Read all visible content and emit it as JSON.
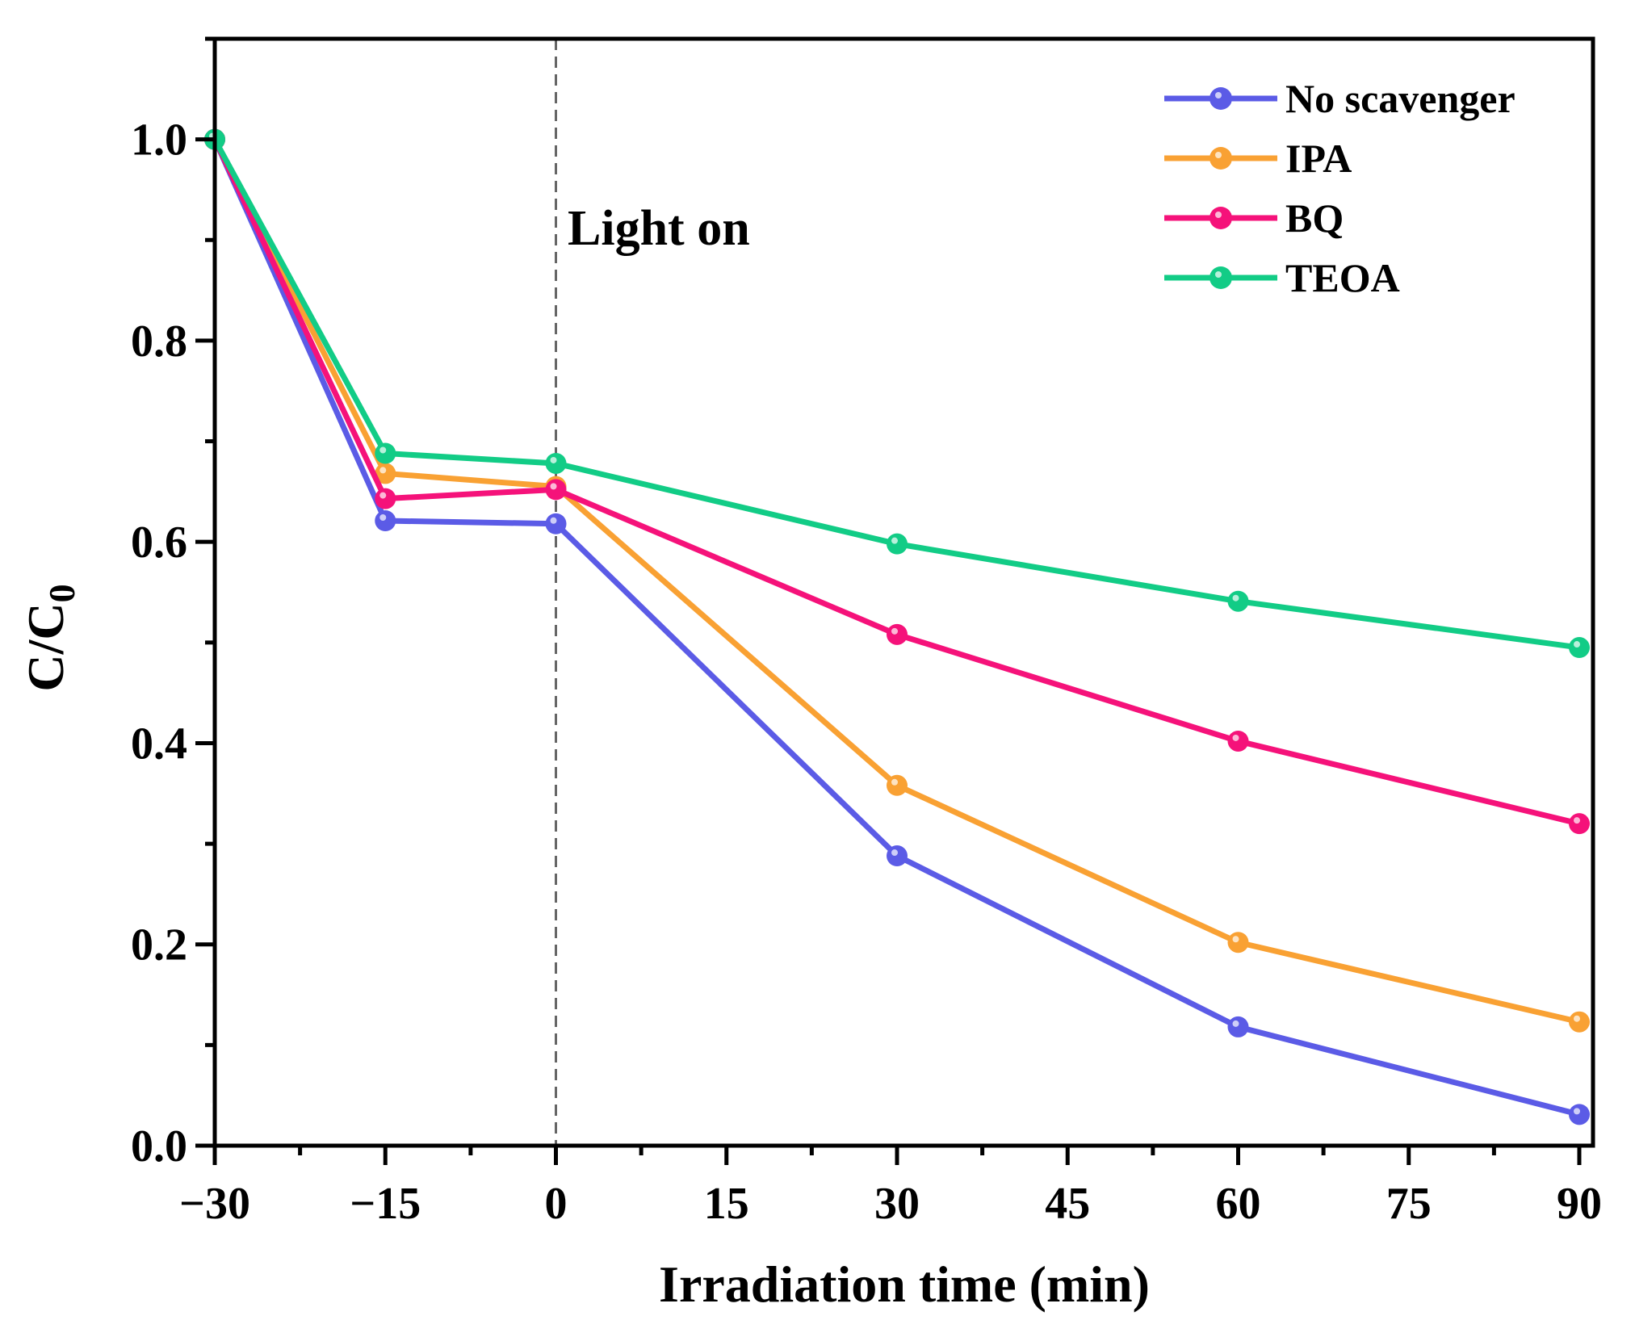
{
  "chart_data": {
    "type": "line",
    "title": "",
    "xlabel": "Irradiation time (min)",
    "ylabel_main": "C/C",
    "ylabel_sub": "0",
    "xlim": [
      -30,
      90
    ],
    "ylim": [
      0,
      1.1
    ],
    "x": [
      -30,
      -15,
      0,
      30,
      60,
      90
    ],
    "xticks": [
      -30,
      -15,
      0,
      15,
      30,
      45,
      60,
      75,
      90
    ],
    "xtick_labels": [
      "−30",
      "−15",
      "0",
      "15",
      "30",
      "45",
      "60",
      "75",
      "90"
    ],
    "yticks": [
      0,
      0.2,
      0.4,
      0.6,
      0.8,
      1.0
    ],
    "ytick_labels": [
      "0.0",
      "0.2",
      "0.4",
      "0.6",
      "0.8",
      "1.0"
    ],
    "grid": false,
    "legend_position": "top-right",
    "annotation": {
      "text": "Light on",
      "x": 0
    },
    "series": [
      {
        "name": "No scavenger",
        "color": "#5b5be6",
        "values": [
          1.0,
          0.621,
          0.618,
          0.288,
          0.118,
          0.031
        ]
      },
      {
        "name": "IPA",
        "color": "#f9a133",
        "values": [
          1.0,
          0.668,
          0.655,
          0.358,
          0.202,
          0.123
        ]
      },
      {
        "name": "BQ",
        "color": "#f5127a",
        "values": [
          1.0,
          0.643,
          0.652,
          0.508,
          0.402,
          0.32
        ]
      },
      {
        "name": "TEOA",
        "color": "#12cc86",
        "values": [
          1.0,
          0.688,
          0.678,
          0.598,
          0.541,
          0.495
        ]
      }
    ]
  }
}
